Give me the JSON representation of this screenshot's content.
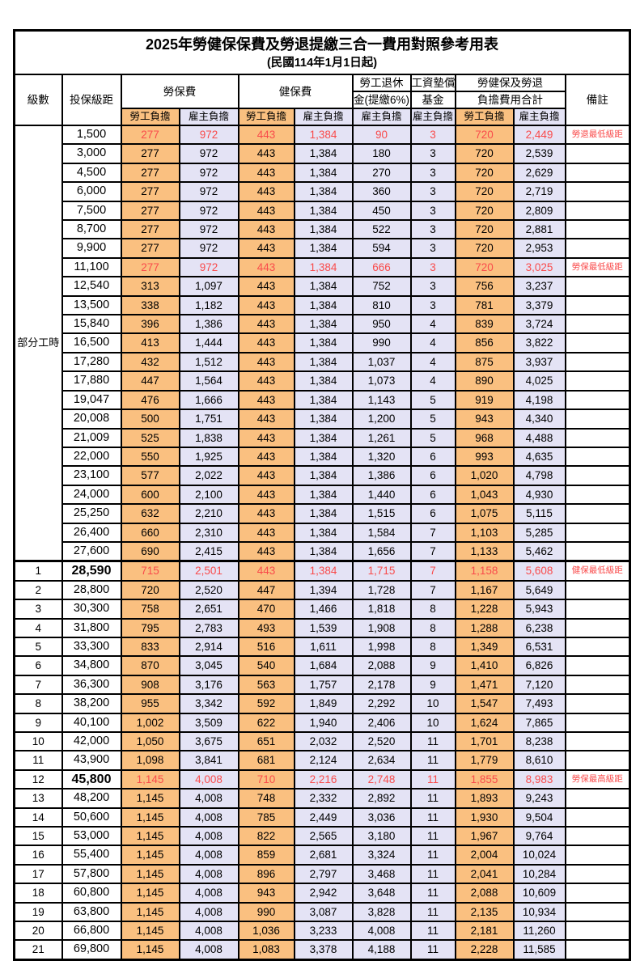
{
  "title": "2025年勞健保保費及勞退提繳三合一費用對照參考用表",
  "subtitle": "(民國114年1月1日起)",
  "header": {
    "level": "級數",
    "bracket": "投保級距",
    "labor_fee": "勞保費",
    "health_fee": "健保費",
    "pension_line1": "勞工退休",
    "pension_line2": "金(提繳6%)",
    "wage_fund_line1": "工資墊償",
    "wage_fund_line2": "基金",
    "total_line1": "勞健保及勞退",
    "total_line2": "負擔費用合計",
    "remark": "備註",
    "employee_burden": "勞工負擔",
    "employer_burden": "雇主負擔"
  },
  "group_label": "部分工時",
  "colors": {
    "employee_col": "#FAC080",
    "employer_col": "#E4E3F5",
    "highlight_text": "#F94B4B"
  },
  "rows": [
    {
      "level": "",
      "bracket": "1,500",
      "labor_emp": "277",
      "labor_er": "972",
      "health_emp": "443",
      "health_er": "1,384",
      "pension_er": "90",
      "fund_er": "3",
      "total_emp": "720",
      "total_er": "2,449",
      "note": "勞退最低級距",
      "red": true
    },
    {
      "level": "",
      "bracket": "3,000",
      "labor_emp": "277",
      "labor_er": "972",
      "health_emp": "443",
      "health_er": "1,384",
      "pension_er": "180",
      "fund_er": "3",
      "total_emp": "720",
      "total_er": "2,539",
      "note": "",
      "red": false
    },
    {
      "level": "",
      "bracket": "4,500",
      "labor_emp": "277",
      "labor_er": "972",
      "health_emp": "443",
      "health_er": "1,384",
      "pension_er": "270",
      "fund_er": "3",
      "total_emp": "720",
      "total_er": "2,629",
      "note": "",
      "red": false
    },
    {
      "level": "",
      "bracket": "6,000",
      "labor_emp": "277",
      "labor_er": "972",
      "health_emp": "443",
      "health_er": "1,384",
      "pension_er": "360",
      "fund_er": "3",
      "total_emp": "720",
      "total_er": "2,719",
      "note": "",
      "red": false
    },
    {
      "level": "",
      "bracket": "7,500",
      "labor_emp": "277",
      "labor_er": "972",
      "health_emp": "443",
      "health_er": "1,384",
      "pension_er": "450",
      "fund_er": "3",
      "total_emp": "720",
      "total_er": "2,809",
      "note": "",
      "red": false
    },
    {
      "level": "",
      "bracket": "8,700",
      "labor_emp": "277",
      "labor_er": "972",
      "health_emp": "443",
      "health_er": "1,384",
      "pension_er": "522",
      "fund_er": "3",
      "total_emp": "720",
      "total_er": "2,881",
      "note": "",
      "red": false
    },
    {
      "level": "",
      "bracket": "9,900",
      "labor_emp": "277",
      "labor_er": "972",
      "health_emp": "443",
      "health_er": "1,384",
      "pension_er": "594",
      "fund_er": "3",
      "total_emp": "720",
      "total_er": "2,953",
      "note": "",
      "red": false
    },
    {
      "level": "",
      "bracket": "11,100",
      "labor_emp": "277",
      "labor_er": "972",
      "health_emp": "443",
      "health_er": "1,384",
      "pension_er": "666",
      "fund_er": "3",
      "total_emp": "720",
      "total_er": "3,025",
      "note": "勞保最低級距",
      "red": true
    },
    {
      "level": "",
      "bracket": "12,540",
      "labor_emp": "313",
      "labor_er": "1,097",
      "health_emp": "443",
      "health_er": "1,384",
      "pension_er": "752",
      "fund_er": "3",
      "total_emp": "756",
      "total_er": "3,237",
      "note": "",
      "red": false
    },
    {
      "level": "",
      "bracket": "13,500",
      "labor_emp": "338",
      "labor_er": "1,182",
      "health_emp": "443",
      "health_er": "1,384",
      "pension_er": "810",
      "fund_er": "3",
      "total_emp": "781",
      "total_er": "3,379",
      "note": "",
      "red": false
    },
    {
      "level": "",
      "bracket": "15,840",
      "labor_emp": "396",
      "labor_er": "1,386",
      "health_emp": "443",
      "health_er": "1,384",
      "pension_er": "950",
      "fund_er": "4",
      "total_emp": "839",
      "total_er": "3,724",
      "note": "",
      "red": false
    },
    {
      "level": "",
      "bracket": "16,500",
      "labor_emp": "413",
      "labor_er": "1,444",
      "health_emp": "443",
      "health_er": "1,384",
      "pension_er": "990",
      "fund_er": "4",
      "total_emp": "856",
      "total_er": "3,822",
      "note": "",
      "red": false
    },
    {
      "level": "",
      "bracket": "17,280",
      "labor_emp": "432",
      "labor_er": "1,512",
      "health_emp": "443",
      "health_er": "1,384",
      "pension_er": "1,037",
      "fund_er": "4",
      "total_emp": "875",
      "total_er": "3,937",
      "note": "",
      "red": false
    },
    {
      "level": "",
      "bracket": "17,880",
      "labor_emp": "447",
      "labor_er": "1,564",
      "health_emp": "443",
      "health_er": "1,384",
      "pension_er": "1,073",
      "fund_er": "4",
      "total_emp": "890",
      "total_er": "4,025",
      "note": "",
      "red": false
    },
    {
      "level": "",
      "bracket": "19,047",
      "labor_emp": "476",
      "labor_er": "1,666",
      "health_emp": "443",
      "health_er": "1,384",
      "pension_er": "1,143",
      "fund_er": "5",
      "total_emp": "919",
      "total_er": "4,198",
      "note": "",
      "red": false
    },
    {
      "level": "",
      "bracket": "20,008",
      "labor_emp": "500",
      "labor_er": "1,751",
      "health_emp": "443",
      "health_er": "1,384",
      "pension_er": "1,200",
      "fund_er": "5",
      "total_emp": "943",
      "total_er": "4,340",
      "note": "",
      "red": false
    },
    {
      "level": "",
      "bracket": "21,009",
      "labor_emp": "525",
      "labor_er": "1,838",
      "health_emp": "443",
      "health_er": "1,384",
      "pension_er": "1,261",
      "fund_er": "5",
      "total_emp": "968",
      "total_er": "4,488",
      "note": "",
      "red": false
    },
    {
      "level": "",
      "bracket": "22,000",
      "labor_emp": "550",
      "labor_er": "1,925",
      "health_emp": "443",
      "health_er": "1,384",
      "pension_er": "1,320",
      "fund_er": "6",
      "total_emp": "993",
      "total_er": "4,635",
      "note": "",
      "red": false
    },
    {
      "level": "",
      "bracket": "23,100",
      "labor_emp": "577",
      "labor_er": "2,022",
      "health_emp": "443",
      "health_er": "1,384",
      "pension_er": "1,386",
      "fund_er": "6",
      "total_emp": "1,020",
      "total_er": "4,798",
      "note": "",
      "red": false
    },
    {
      "level": "",
      "bracket": "24,000",
      "labor_emp": "600",
      "labor_er": "2,100",
      "health_emp": "443",
      "health_er": "1,384",
      "pension_er": "1,440",
      "fund_er": "6",
      "total_emp": "1,043",
      "total_er": "4,930",
      "note": "",
      "red": false
    },
    {
      "level": "",
      "bracket": "25,250",
      "labor_emp": "632",
      "labor_er": "2,210",
      "health_emp": "443",
      "health_er": "1,384",
      "pension_er": "1,515",
      "fund_er": "6",
      "total_emp": "1,075",
      "total_er": "5,115",
      "note": "",
      "red": false
    },
    {
      "level": "",
      "bracket": "26,400",
      "labor_emp": "660",
      "labor_er": "2,310",
      "health_emp": "443",
      "health_er": "1,384",
      "pension_er": "1,584",
      "fund_er": "7",
      "total_emp": "1,103",
      "total_er": "5,285",
      "note": "",
      "red": false
    },
    {
      "level": "",
      "bracket": "27,600",
      "labor_emp": "690",
      "labor_er": "2,415",
      "health_emp": "443",
      "health_er": "1,384",
      "pension_er": "1,656",
      "fund_er": "7",
      "total_emp": "1,133",
      "total_er": "5,462",
      "note": "",
      "red": false
    },
    {
      "level": "1",
      "bracket": "28,590",
      "labor_emp": "715",
      "labor_er": "2,501",
      "health_emp": "443",
      "health_er": "1,384",
      "pension_er": "1,715",
      "fund_er": "7",
      "total_emp": "1,158",
      "total_er": "5,608",
      "note": "健保最低級距",
      "red": true,
      "bold_bracket": true,
      "thick_top": true
    },
    {
      "level": "2",
      "bracket": "28,800",
      "labor_emp": "720",
      "labor_er": "2,520",
      "health_emp": "447",
      "health_er": "1,394",
      "pension_er": "1,728",
      "fund_er": "7",
      "total_emp": "1,167",
      "total_er": "5,649",
      "note": "",
      "red": false
    },
    {
      "level": "3",
      "bracket": "30,300",
      "labor_emp": "758",
      "labor_er": "2,651",
      "health_emp": "470",
      "health_er": "1,466",
      "pension_er": "1,818",
      "fund_er": "8",
      "total_emp": "1,228",
      "total_er": "5,943",
      "note": "",
      "red": false
    },
    {
      "level": "4",
      "bracket": "31,800",
      "labor_emp": "795",
      "labor_er": "2,783",
      "health_emp": "493",
      "health_er": "1,539",
      "pension_er": "1,908",
      "fund_er": "8",
      "total_emp": "1,288",
      "total_er": "6,238",
      "note": "",
      "red": false
    },
    {
      "level": "5",
      "bracket": "33,300",
      "labor_emp": "833",
      "labor_er": "2,914",
      "health_emp": "516",
      "health_er": "1,611",
      "pension_er": "1,998",
      "fund_er": "8",
      "total_emp": "1,349",
      "total_er": "6,531",
      "note": "",
      "red": false
    },
    {
      "level": "6",
      "bracket": "34,800",
      "labor_emp": "870",
      "labor_er": "3,045",
      "health_emp": "540",
      "health_er": "1,684",
      "pension_er": "2,088",
      "fund_er": "9",
      "total_emp": "1,410",
      "total_er": "6,826",
      "note": "",
      "red": false
    },
    {
      "level": "7",
      "bracket": "36,300",
      "labor_emp": "908",
      "labor_er": "3,176",
      "health_emp": "563",
      "health_er": "1,757",
      "pension_er": "2,178",
      "fund_er": "9",
      "total_emp": "1,471",
      "total_er": "7,120",
      "note": "",
      "red": false
    },
    {
      "level": "8",
      "bracket": "38,200",
      "labor_emp": "955",
      "labor_er": "3,342",
      "health_emp": "592",
      "health_er": "1,849",
      "pension_er": "2,292",
      "fund_er": "10",
      "total_emp": "1,547",
      "total_er": "7,493",
      "note": "",
      "red": false
    },
    {
      "level": "9",
      "bracket": "40,100",
      "labor_emp": "1,002",
      "labor_er": "3,509",
      "health_emp": "622",
      "health_er": "1,940",
      "pension_er": "2,406",
      "fund_er": "10",
      "total_emp": "1,624",
      "total_er": "7,865",
      "note": "",
      "red": false
    },
    {
      "level": "10",
      "bracket": "42,000",
      "labor_emp": "1,050",
      "labor_er": "3,675",
      "health_emp": "651",
      "health_er": "2,032",
      "pension_er": "2,520",
      "fund_er": "11",
      "total_emp": "1,701",
      "total_er": "8,238",
      "note": "",
      "red": false
    },
    {
      "level": "11",
      "bracket": "43,900",
      "labor_emp": "1,098",
      "labor_er": "3,841",
      "health_emp": "681",
      "health_er": "2,124",
      "pension_er": "2,634",
      "fund_er": "11",
      "total_emp": "1,779",
      "total_er": "8,610",
      "note": "",
      "red": false
    },
    {
      "level": "12",
      "bracket": "45,800",
      "labor_emp": "1,145",
      "labor_er": "4,008",
      "health_emp": "710",
      "health_er": "2,216",
      "pension_er": "2,748",
      "fund_er": "11",
      "total_emp": "1,855",
      "total_er": "8,983",
      "note": "勞保最高級距",
      "red": true,
      "bold_bracket": true
    },
    {
      "level": "13",
      "bracket": "48,200",
      "labor_emp": "1,145",
      "labor_er": "4,008",
      "health_emp": "748",
      "health_er": "2,332",
      "pension_er": "2,892",
      "fund_er": "11",
      "total_emp": "1,893",
      "total_er": "9,243",
      "note": "",
      "red": false
    },
    {
      "level": "14",
      "bracket": "50,600",
      "labor_emp": "1,145",
      "labor_er": "4,008",
      "health_emp": "785",
      "health_er": "2,449",
      "pension_er": "3,036",
      "fund_er": "11",
      "total_emp": "1,930",
      "total_er": "9,504",
      "note": "",
      "red": false
    },
    {
      "level": "15",
      "bracket": "53,000",
      "labor_emp": "1,145",
      "labor_er": "4,008",
      "health_emp": "822",
      "health_er": "2,565",
      "pension_er": "3,180",
      "fund_er": "11",
      "total_emp": "1,967",
      "total_er": "9,764",
      "note": "",
      "red": false
    },
    {
      "level": "16",
      "bracket": "55,400",
      "labor_emp": "1,145",
      "labor_er": "4,008",
      "health_emp": "859",
      "health_er": "2,681",
      "pension_er": "3,324",
      "fund_er": "11",
      "total_emp": "2,004",
      "total_er": "10,024",
      "note": "",
      "red": false
    },
    {
      "level": "17",
      "bracket": "57,800",
      "labor_emp": "1,145",
      "labor_er": "4,008",
      "health_emp": "896",
      "health_er": "2,797",
      "pension_er": "3,468",
      "fund_er": "11",
      "total_emp": "2,041",
      "total_er": "10,284",
      "note": "",
      "red": false
    },
    {
      "level": "18",
      "bracket": "60,800",
      "labor_emp": "1,145",
      "labor_er": "4,008",
      "health_emp": "943",
      "health_er": "2,942",
      "pension_er": "3,648",
      "fund_er": "11",
      "total_emp": "2,088",
      "total_er": "10,609",
      "note": "",
      "red": false
    },
    {
      "level": "19",
      "bracket": "63,800",
      "labor_emp": "1,145",
      "labor_er": "4,008",
      "health_emp": "990",
      "health_er": "3,087",
      "pension_er": "3,828",
      "fund_er": "11",
      "total_emp": "2,135",
      "total_er": "10,934",
      "note": "",
      "red": false
    },
    {
      "level": "20",
      "bracket": "66,800",
      "labor_emp": "1,145",
      "labor_er": "4,008",
      "health_emp": "1,036",
      "health_er": "3,233",
      "pension_er": "4,008",
      "fund_er": "11",
      "total_emp": "2,181",
      "total_er": "11,260",
      "note": "",
      "red": false
    },
    {
      "level": "21",
      "bracket": "69,800",
      "labor_emp": "1,145",
      "labor_er": "4,008",
      "health_emp": "1,083",
      "health_er": "3,378",
      "pension_er": "4,188",
      "fund_er": "11",
      "total_emp": "2,228",
      "total_er": "11,585",
      "note": "",
      "red": false
    }
  ]
}
